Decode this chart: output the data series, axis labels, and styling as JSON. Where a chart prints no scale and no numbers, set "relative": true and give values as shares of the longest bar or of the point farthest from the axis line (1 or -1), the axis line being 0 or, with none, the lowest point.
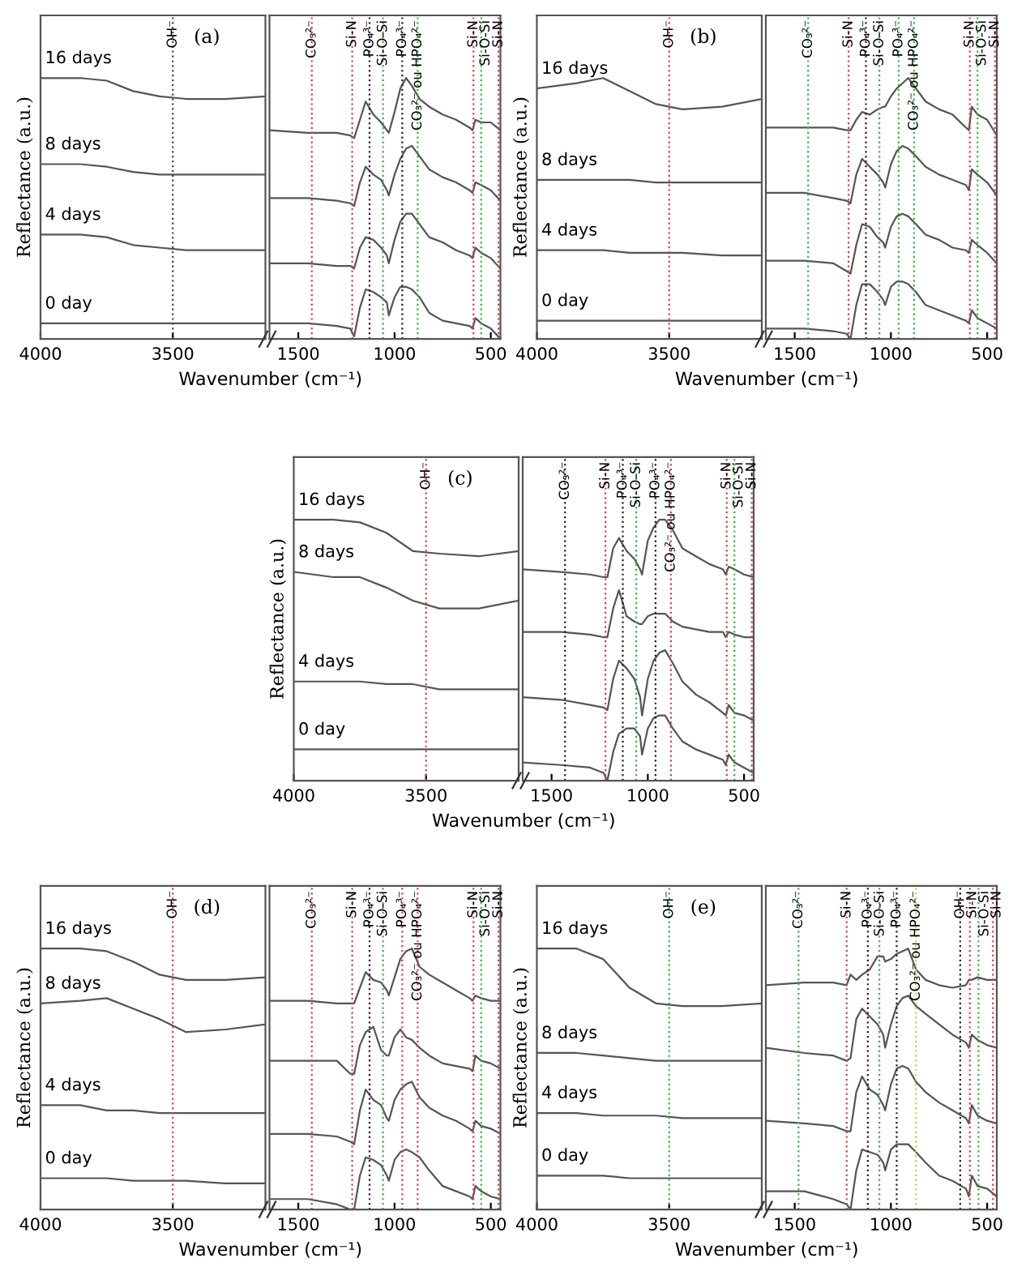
{
  "chart_data": [
    {
      "type": "line",
      "relative": true,
      "title": "(a)",
      "ylabel": "Reflectance (a.u.)",
      "xlabel": "Wavenumber (cm⁻¹)",
      "xlim": [
        4000,
        3150
      ],
      "xticks": [
        4000,
        3500
      ],
      "x": [
        4000,
        3850,
        3750,
        3650,
        3550,
        3450,
        3300,
        3150
      ],
      "ref_lines": [
        {
          "axis": "x",
          "value": 3500,
          "label": "OH⁻",
          "color": "#444444",
          "line_style": "dotted"
        }
      ],
      "series": [
        {
          "name": "16 days",
          "color": "#555555",
          "values": [
            1.0,
            1.0,
            0.99,
            0.95,
            0.93,
            0.92,
            0.92,
            0.93
          ]
        },
        {
          "name": "8 days",
          "color": "#555555",
          "values": [
            0.67,
            0.67,
            0.66,
            0.64,
            0.63,
            0.63,
            0.63,
            0.63
          ]
        },
        {
          "name": "4 days",
          "color": "#555555",
          "values": [
            0.4,
            0.4,
            0.39,
            0.36,
            0.35,
            0.34,
            0.34,
            0.34
          ]
        },
        {
          "name": "0 day",
          "color": "#555555",
          "values": [
            0.06,
            0.06,
            0.06,
            0.06,
            0.06,
            0.06,
            0.06,
            0.06
          ]
        }
      ]
    },
    {
      "type": "line",
      "relative": true,
      "xlim": [
        1650,
        450
      ],
      "xticks": [
        1500,
        1000,
        500
      ],
      "x": [
        1650,
        1450,
        1300,
        1230,
        1210,
        1180,
        1150,
        1110,
        1070,
        1040,
        1030,
        1000,
        970,
        940,
        910,
        870,
        820,
        750,
        680,
        610,
        595,
        580,
        550,
        500,
        450
      ],
      "ref_lines": [
        {
          "axis": "x",
          "value": 1430,
          "label": "CO₃²⁻",
          "color": "#cc4444",
          "line_style": "dotted"
        },
        {
          "axis": "x",
          "value": 1220,
          "label": "Si-N",
          "color": "#cc4444",
          "line_style": "dotted"
        },
        {
          "axis": "x",
          "value": 1130,
          "label": "PO₄³⁻",
          "color": "#222222",
          "line_style": "dotted"
        },
        {
          "axis": "x",
          "value": 1060,
          "label": "Si-O-Si",
          "color": "#44aa44",
          "line_style": "dotted"
        },
        {
          "axis": "x",
          "value": 960,
          "label": "PO₄³⁻",
          "color": "#222222",
          "line_style": "dotted"
        },
        {
          "axis": "x",
          "value": 880,
          "label": "CO₃²⁻ ou HPO₄²⁻",
          "color": "#44aa44",
          "line_style": "dotted"
        },
        {
          "axis": "x",
          "value": 590,
          "label": "Si-N",
          "color": "#cc4444",
          "line_style": "dotted"
        },
        {
          "axis": "x",
          "value": 550,
          "label": "Si-O-Si",
          "color": "#44aa44",
          "line_style": "dotted"
        },
        {
          "axis": "x",
          "value": 460,
          "label": "Si-N",
          "color": "#cc4444",
          "line_style": "dotted"
        }
      ],
      "series": [
        {
          "color": "#555555",
          "values": [
            0.8,
            0.79,
            0.79,
            0.78,
            0.77,
            0.84,
            0.91,
            0.86,
            0.83,
            0.8,
            0.79,
            0.87,
            0.96,
            1.0,
            0.97,
            0.92,
            0.89,
            0.86,
            0.84,
            0.81,
            0.8,
            0.84,
            0.83,
            0.83,
            0.8
          ]
        },
        {
          "color": "#555555",
          "values": [
            0.54,
            0.54,
            0.53,
            0.52,
            0.51,
            0.6,
            0.66,
            0.63,
            0.61,
            0.57,
            0.55,
            0.63,
            0.69,
            0.73,
            0.74,
            0.7,
            0.65,
            0.62,
            0.6,
            0.57,
            0.56,
            0.6,
            0.59,
            0.57,
            0.53
          ]
        },
        {
          "color": "#555555",
          "values": [
            0.29,
            0.29,
            0.28,
            0.28,
            0.27,
            0.35,
            0.39,
            0.38,
            0.35,
            0.32,
            0.29,
            0.38,
            0.45,
            0.48,
            0.48,
            0.44,
            0.39,
            0.37,
            0.34,
            0.32,
            0.31,
            0.35,
            0.33,
            0.31,
            0.27
          ]
        },
        {
          "color": "#555555",
          "values": [
            0.06,
            0.06,
            0.05,
            0.04,
            0.01,
            0.12,
            0.19,
            0.18,
            0.16,
            0.14,
            0.09,
            0.16,
            0.2,
            0.2,
            0.19,
            0.16,
            0.1,
            0.07,
            0.06,
            0.05,
            0.04,
            0.08,
            0.06,
            0.04,
            0.0
          ]
        }
      ]
    },
    {
      "type": "line",
      "relative": true,
      "title": "(b)",
      "ylabel": "Reflectance (a.u.)",
      "xlabel": "Wavenumber (cm⁻¹)",
      "xlim": [
        4000,
        3150
      ],
      "xticks": [
        4000,
        3500
      ],
      "x": [
        4000,
        3850,
        3750,
        3650,
        3550,
        3450,
        3300,
        3150
      ],
      "ref_lines": [
        {
          "axis": "x",
          "value": 3500,
          "label": "OH⁻",
          "color": "#cc4444",
          "line_style": "dotted"
        }
      ],
      "series": [
        {
          "name": "16 days",
          "color": "#555555",
          "values": [
            0.96,
            0.98,
            1.0,
            0.95,
            0.9,
            0.88,
            0.89,
            0.92
          ]
        },
        {
          "name": "8 days",
          "color": "#555555",
          "values": [
            0.61,
            0.61,
            0.61,
            0.61,
            0.6,
            0.6,
            0.6,
            0.6
          ]
        },
        {
          "name": "4 days",
          "color": "#555555",
          "values": [
            0.34,
            0.34,
            0.34,
            0.33,
            0.33,
            0.33,
            0.32,
            0.32
          ]
        },
        {
          "name": "0 day",
          "color": "#555555",
          "values": [
            0.07,
            0.07,
            0.07,
            0.07,
            0.07,
            0.07,
            0.07,
            0.07
          ]
        }
      ]
    },
    {
      "type": "line",
      "relative": true,
      "xlim": [
        1650,
        450
      ],
      "xticks": [
        1500,
        1000,
        500
      ],
      "x": [
        1650,
        1450,
        1300,
        1230,
        1210,
        1180,
        1150,
        1110,
        1070,
        1040,
        1030,
        1000,
        970,
        940,
        910,
        870,
        820,
        750,
        680,
        610,
        595,
        580,
        550,
        500,
        450
      ],
      "ref_lines": [
        {
          "axis": "x",
          "value": 1430,
          "label": "CO₃²⁻",
          "color": "#44aa44",
          "line_style": "dotted"
        },
        {
          "axis": "x",
          "value": 1220,
          "label": "Si-N",
          "color": "#cc4444",
          "line_style": "dotted"
        },
        {
          "axis": "x",
          "value": 1130,
          "label": "PO₄³⁻",
          "color": "#222222",
          "line_style": "dotted"
        },
        {
          "axis": "x",
          "value": 1060,
          "label": "Si-O-Si",
          "color": "#44aa44",
          "line_style": "dotted"
        },
        {
          "axis": "x",
          "value": 960,
          "label": "PO₄³⁻",
          "color": "#44aa44",
          "line_style": "dotted"
        },
        {
          "axis": "x",
          "value": 880,
          "label": "CO₃²⁻ ou HPO₄²⁻",
          "color": "#44aa44",
          "line_style": "dotted"
        },
        {
          "axis": "x",
          "value": 590,
          "label": "Si-N",
          "color": "#cc4444",
          "line_style": "dotted"
        },
        {
          "axis": "x",
          "value": 550,
          "label": "Si-O-Si",
          "color": "#44aa44",
          "line_style": "dotted"
        },
        {
          "axis": "x",
          "value": 460,
          "label": "Si-N",
          "color": "#cc4444",
          "line_style": "dotted"
        }
      ],
      "series": [
        {
          "color": "#555555",
          "values": [
            0.81,
            0.81,
            0.81,
            0.8,
            0.8,
            0.84,
            0.87,
            0.86,
            0.88,
            0.89,
            0.89,
            0.93,
            0.96,
            0.98,
            1.0,
            0.96,
            0.91,
            0.88,
            0.86,
            0.81,
            0.8,
            0.89,
            0.86,
            0.84,
            0.78
          ]
        },
        {
          "color": "#555555",
          "values": [
            0.56,
            0.56,
            0.54,
            0.53,
            0.52,
            0.63,
            0.69,
            0.66,
            0.63,
            0.6,
            0.58,
            0.67,
            0.72,
            0.74,
            0.73,
            0.7,
            0.66,
            0.63,
            0.61,
            0.59,
            0.57,
            0.65,
            0.63,
            0.6,
            0.55
          ]
        },
        {
          "color": "#555555",
          "values": [
            0.3,
            0.3,
            0.29,
            0.26,
            0.25,
            0.36,
            0.44,
            0.43,
            0.39,
            0.37,
            0.35,
            0.43,
            0.47,
            0.48,
            0.47,
            0.44,
            0.4,
            0.38,
            0.35,
            0.34,
            0.33,
            0.38,
            0.36,
            0.33,
            0.29
          ]
        },
        {
          "color": "#555555",
          "values": [
            0.04,
            0.04,
            0.03,
            0.02,
            0.0,
            0.13,
            0.21,
            0.21,
            0.18,
            0.15,
            0.13,
            0.2,
            0.22,
            0.22,
            0.21,
            0.18,
            0.13,
            0.11,
            0.09,
            0.07,
            0.06,
            0.11,
            0.08,
            0.06,
            0.04
          ]
        }
      ]
    },
    {
      "type": "line",
      "relative": true,
      "title": "(c)",
      "ylabel": "Reflectance (a.u.)",
      "xlabel": "Wavenumber (cm⁻¹)",
      "xlim": [
        4000,
        3150
      ],
      "xticks": [
        4000,
        3500
      ],
      "x": [
        4000,
        3850,
        3750,
        3650,
        3550,
        3450,
        3300,
        3150
      ],
      "ref_lines": [
        {
          "axis": "x",
          "value": 3500,
          "label": "OH⁻",
          "color": "#cc4444",
          "line_style": "dotted"
        }
      ],
      "series": [
        {
          "name": "16 days",
          "color": "#555555",
          "values": [
            1.0,
            1.0,
            0.99,
            0.95,
            0.88,
            0.87,
            0.86,
            0.88
          ]
        },
        {
          "name": "8 days",
          "color": "#555555",
          "values": [
            0.8,
            0.78,
            0.78,
            0.74,
            0.69,
            0.66,
            0.66,
            0.69
          ]
        },
        {
          "name": "4 days",
          "color": "#555555",
          "values": [
            0.38,
            0.38,
            0.38,
            0.37,
            0.37,
            0.35,
            0.35,
            0.35
          ]
        },
        {
          "name": "0 day",
          "color": "#555555",
          "values": [
            0.12,
            0.12,
            0.12,
            0.12,
            0.12,
            0.12,
            0.12,
            0.12
          ]
        }
      ]
    },
    {
      "type": "line",
      "relative": true,
      "xlim": [
        1650,
        450
      ],
      "xticks": [
        1500,
        1000,
        500
      ],
      "x": [
        1650,
        1450,
        1300,
        1230,
        1210,
        1180,
        1150,
        1110,
        1070,
        1040,
        1030,
        1000,
        970,
        940,
        910,
        870,
        820,
        750,
        680,
        610,
        595,
        580,
        550,
        500,
        450
      ],
      "ref_lines": [
        {
          "axis": "x",
          "value": 1430,
          "label": "CO₃²⁻",
          "color": "#222222",
          "line_style": "dotted"
        },
        {
          "axis": "x",
          "value": 1220,
          "label": "Si-N",
          "color": "#cc4444",
          "line_style": "dotted"
        },
        {
          "axis": "x",
          "value": 1130,
          "label": "PO₄³⁻",
          "color": "#222222",
          "line_style": "dotted"
        },
        {
          "axis": "x",
          "value": 1060,
          "label": "Si-O-Si",
          "color": "#44aa44",
          "line_style": "dotted"
        },
        {
          "axis": "x",
          "value": 960,
          "label": "PO₄³⁻",
          "color": "#222222",
          "line_style": "dotted"
        },
        {
          "axis": "x",
          "value": 880,
          "label": "CO₃²⁻ ou HPO₄²⁻",
          "color": "#cc4444",
          "line_style": "dotted"
        },
        {
          "axis": "x",
          "value": 590,
          "label": "Si-N",
          "color": "#cc4444",
          "line_style": "dotted"
        },
        {
          "axis": "x",
          "value": 550,
          "label": "Si-O-Si",
          "color": "#44aa44",
          "line_style": "dotted"
        },
        {
          "axis": "x",
          "value": 460,
          "label": "Si-N",
          "color": "#cc4444",
          "line_style": "dotted"
        }
      ],
      "series": [
        {
          "color": "#555555",
          "values": [
            0.81,
            0.8,
            0.79,
            0.78,
            0.78,
            0.89,
            0.93,
            0.88,
            0.85,
            0.81,
            0.79,
            0.92,
            0.97,
            1.0,
            1.0,
            0.96,
            0.89,
            0.86,
            0.83,
            0.81,
            0.79,
            0.82,
            0.81,
            0.79,
            0.78
          ]
        },
        {
          "color": "#555555",
          "values": [
            0.57,
            0.57,
            0.56,
            0.55,
            0.55,
            0.66,
            0.73,
            0.63,
            0.61,
            0.6,
            0.6,
            0.63,
            0.64,
            0.64,
            0.64,
            0.61,
            0.59,
            0.58,
            0.57,
            0.57,
            0.55,
            0.57,
            0.56,
            0.55,
            0.55
          ]
        },
        {
          "color": "#555555",
          "values": [
            0.32,
            0.31,
            0.29,
            0.28,
            0.27,
            0.39,
            0.46,
            0.43,
            0.39,
            0.32,
            0.25,
            0.39,
            0.46,
            0.49,
            0.5,
            0.45,
            0.38,
            0.33,
            0.3,
            0.26,
            0.25,
            0.29,
            0.26,
            0.25,
            0.23
          ]
        },
        {
          "color": "#555555",
          "values": [
            0.07,
            0.06,
            0.05,
            0.03,
            0.0,
            0.11,
            0.18,
            0.2,
            0.2,
            0.17,
            0.1,
            0.2,
            0.24,
            0.25,
            0.25,
            0.2,
            0.15,
            0.12,
            0.1,
            0.08,
            0.06,
            0.1,
            0.07,
            0.05,
            0.03
          ]
        }
      ]
    },
    {
      "type": "line",
      "relative": true,
      "title": "(d)",
      "ylabel": "Reflectance (a.u.)",
      "xlabel": "Wavenumber (cm⁻¹)",
      "xlim": [
        4000,
        3150
      ],
      "xticks": [
        4000,
        3500
      ],
      "x": [
        4000,
        3850,
        3750,
        3650,
        3550,
        3450,
        3300,
        3150
      ],
      "ref_lines": [
        {
          "axis": "x",
          "value": 3500,
          "label": "OH⁻",
          "color": "#cc4444",
          "line_style": "dotted"
        }
      ],
      "series": [
        {
          "name": "16 days",
          "color": "#555555",
          "values": [
            1.0,
            1.0,
            0.99,
            0.95,
            0.9,
            0.88,
            0.88,
            0.89
          ]
        },
        {
          "name": "8 days",
          "color": "#555555",
          "values": [
            0.79,
            0.8,
            0.81,
            0.77,
            0.73,
            0.68,
            0.69,
            0.71
          ]
        },
        {
          "name": "4 days",
          "color": "#555555",
          "values": [
            0.4,
            0.4,
            0.38,
            0.38,
            0.37,
            0.37,
            0.37,
            0.37
          ]
        },
        {
          "name": "0 day",
          "color": "#555555",
          "values": [
            0.12,
            0.12,
            0.12,
            0.11,
            0.11,
            0.11,
            0.1,
            0.1
          ]
        }
      ]
    },
    {
      "type": "line",
      "relative": true,
      "xlim": [
        1650,
        450
      ],
      "xticks": [
        1500,
        1000,
        500
      ],
      "x": [
        1650,
        1450,
        1300,
        1230,
        1210,
        1180,
        1150,
        1110,
        1070,
        1040,
        1030,
        1000,
        970,
        940,
        910,
        870,
        820,
        750,
        680,
        610,
        595,
        580,
        550,
        500,
        450
      ],
      "ref_lines": [
        {
          "axis": "x",
          "value": 1430,
          "label": "CO₃²⁻",
          "color": "#cc4444",
          "line_style": "dotted"
        },
        {
          "axis": "x",
          "value": 1220,
          "label": "Si-N",
          "color": "#cc4444",
          "line_style": "dotted"
        },
        {
          "axis": "x",
          "value": 1130,
          "label": "PO₄³⁻",
          "color": "#222222",
          "line_style": "dotted"
        },
        {
          "axis": "x",
          "value": 1060,
          "label": "Si-O-Si",
          "color": "#44aa44",
          "line_style": "dotted"
        },
        {
          "axis": "x",
          "value": 960,
          "label": "PO₄³⁻",
          "color": "#cc4444",
          "line_style": "dotted"
        },
        {
          "axis": "x",
          "value": 880,
          "label": "CO₃²⁻ ou HPO₄²⁻",
          "color": "#cc4444",
          "line_style": "dotted"
        },
        {
          "axis": "x",
          "value": 590,
          "label": "Si-N",
          "color": "#cc4444",
          "line_style": "dotted"
        },
        {
          "axis": "x",
          "value": 550,
          "label": "Si-O-Si",
          "color": "#44aa44",
          "line_style": "dotted"
        },
        {
          "axis": "x",
          "value": 460,
          "label": "Si-N",
          "color": "#cc4444",
          "line_style": "dotted"
        }
      ],
      "series": [
        {
          "color": "#555555",
          "values": [
            0.8,
            0.8,
            0.79,
            0.79,
            0.79,
            0.85,
            0.91,
            0.88,
            0.87,
            0.84,
            0.82,
            0.89,
            0.96,
            0.99,
            1.0,
            0.93,
            0.9,
            0.87,
            0.84,
            0.81,
            0.8,
            0.82,
            0.81,
            0.8,
            0.8
          ]
        },
        {
          "color": "#555555",
          "values": [
            0.57,
            0.57,
            0.57,
            0.52,
            0.52,
            0.63,
            0.68,
            0.7,
            0.61,
            0.59,
            0.59,
            0.66,
            0.69,
            0.66,
            0.65,
            0.62,
            0.59,
            0.56,
            0.55,
            0.54,
            0.53,
            0.59,
            0.57,
            0.56,
            0.54
          ]
        },
        {
          "color": "#555555",
          "values": [
            0.29,
            0.29,
            0.28,
            0.26,
            0.25,
            0.38,
            0.46,
            0.42,
            0.4,
            0.35,
            0.34,
            0.42,
            0.46,
            0.48,
            0.49,
            0.43,
            0.39,
            0.36,
            0.34,
            0.31,
            0.3,
            0.34,
            0.32,
            0.31,
            0.29
          ]
        },
        {
          "color": "#555555",
          "values": [
            0.04,
            0.04,
            0.02,
            0.0,
            0.0,
            0.13,
            0.2,
            0.19,
            0.17,
            0.13,
            0.11,
            0.19,
            0.22,
            0.23,
            0.22,
            0.2,
            0.15,
            0.09,
            0.07,
            0.05,
            0.04,
            0.09,
            0.07,
            0.05,
            0.04
          ]
        }
      ]
    },
    {
      "type": "line",
      "relative": true,
      "title": "(e)",
      "ylabel": "Reflectance (a.u.)",
      "xlabel": "Wavenumber (cm⁻¹)",
      "xlim": [
        4000,
        3150
      ],
      "xticks": [
        4000,
        3500
      ],
      "x": [
        4000,
        3850,
        3750,
        3650,
        3550,
        3450,
        3300,
        3150
      ],
      "ref_lines": [
        {
          "axis": "x",
          "value": 3500,
          "label": "OH⁻",
          "color": "#44aa44",
          "line_style": "dotted"
        }
      ],
      "series": [
        {
          "name": "16 days",
          "color": "#555555",
          "values": [
            1.0,
            1.0,
            0.96,
            0.85,
            0.79,
            0.78,
            0.78,
            0.79
          ]
        },
        {
          "name": "8 days",
          "color": "#555555",
          "values": [
            0.6,
            0.6,
            0.59,
            0.58,
            0.57,
            0.57,
            0.57,
            0.57
          ]
        },
        {
          "name": "4 days",
          "color": "#555555",
          "values": [
            0.37,
            0.37,
            0.36,
            0.36,
            0.36,
            0.35,
            0.35,
            0.35
          ]
        },
        {
          "name": "0 day",
          "color": "#555555",
          "values": [
            0.13,
            0.13,
            0.13,
            0.12,
            0.12,
            0.12,
            0.12,
            0.12
          ]
        }
      ]
    },
    {
      "type": "line",
      "relative": true,
      "xlim": [
        1650,
        450
      ],
      "xticks": [
        1500,
        1000,
        500
      ],
      "x": [
        1650,
        1450,
        1300,
        1230,
        1210,
        1180,
        1150,
        1110,
        1070,
        1040,
        1030,
        1000,
        970,
        940,
        910,
        870,
        820,
        750,
        680,
        610,
        595,
        580,
        550,
        500,
        450
      ],
      "ref_lines": [
        {
          "axis": "x",
          "value": 1480,
          "label": "CO₃²⁻",
          "color": "#44aa44",
          "line_style": "dotted"
        },
        {
          "axis": "x",
          "value": 1230,
          "label": "Si-N",
          "color": "#cc4444",
          "line_style": "dotted"
        },
        {
          "axis": "x",
          "value": 1120,
          "label": "PO₄³⁻",
          "color": "#222222",
          "line_style": "dotted"
        },
        {
          "axis": "x",
          "value": 1060,
          "label": "Si-O-Si",
          "color": "#44aa44",
          "line_style": "dotted"
        },
        {
          "axis": "x",
          "value": 970,
          "label": "PO₄³⁻",
          "color": "#222222",
          "line_style": "dotted"
        },
        {
          "axis": "x",
          "value": 870,
          "label": "CO₃²⁻ ou HPO₄²⁻",
          "color": "#cccc44",
          "line_style": "dotted"
        },
        {
          "axis": "x",
          "value": 640,
          "label": "OH⁻",
          "color": "#222222",
          "line_style": "dotted"
        },
        {
          "axis": "x",
          "value": 590,
          "label": "Si-N",
          "color": "#cc4444",
          "line_style": "dotted"
        },
        {
          "axis": "x",
          "value": 545,
          "label": "Si-O-Si",
          "color": "#44aa44",
          "line_style": "dotted"
        },
        {
          "axis": "x",
          "value": 470,
          "label": "Si-N",
          "color": "#cc4444",
          "line_style": "dotted"
        }
      ],
      "series": [
        {
          "color": "#555555",
          "values": [
            0.86,
            0.87,
            0.87,
            0.86,
            0.9,
            0.88,
            0.9,
            0.92,
            0.97,
            0.97,
            0.95,
            0.96,
            0.98,
            0.99,
            1.0,
            0.92,
            0.88,
            0.86,
            0.85,
            0.86,
            0.88,
            0.88,
            0.89,
            0.88,
            0.88
          ]
        },
        {
          "color": "#555555",
          "values": [
            0.62,
            0.6,
            0.59,
            0.57,
            0.58,
            0.73,
            0.77,
            0.74,
            0.71,
            0.67,
            0.62,
            0.71,
            0.78,
            0.81,
            0.82,
            0.78,
            0.75,
            0.71,
            0.67,
            0.64,
            0.62,
            0.67,
            0.65,
            0.63,
            0.62
          ]
        },
        {
          "color": "#555555",
          "values": [
            0.34,
            0.33,
            0.32,
            0.3,
            0.3,
            0.45,
            0.51,
            0.46,
            0.44,
            0.4,
            0.38,
            0.48,
            0.54,
            0.55,
            0.54,
            0.49,
            0.45,
            0.41,
            0.38,
            0.35,
            0.33,
            0.4,
            0.36,
            0.34,
            0.33
          ]
        },
        {
          "color": "#555555",
          "values": [
            0.07,
            0.07,
            0.04,
            0.02,
            0.0,
            0.15,
            0.23,
            0.22,
            0.21,
            0.18,
            0.15,
            0.23,
            0.25,
            0.25,
            0.25,
            0.22,
            0.18,
            0.13,
            0.11,
            0.08,
            0.05,
            0.13,
            0.09,
            0.08,
            0.05
          ]
        }
      ]
    }
  ]
}
